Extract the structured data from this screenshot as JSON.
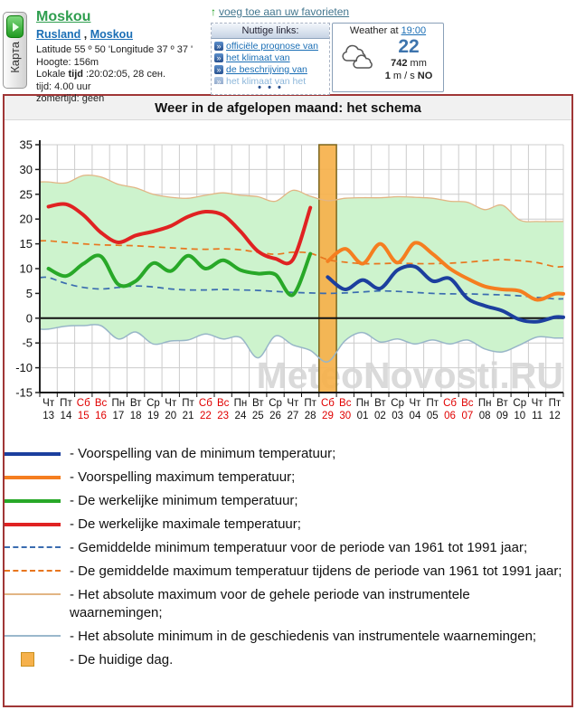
{
  "header": {
    "map_tab_label": "Карта",
    "city": {
      "name": "Moskou",
      "country": "Rusland",
      "sep": " , ",
      "region": "Moskou",
      "coords": "Latitude 55 º 50 'Longitude 37 º 37 '",
      "altitude": "Hoogte: 156m",
      "local_time_prefix": "Lokale ",
      "local_time_bold": "tijd",
      "local_time_rest": " :20:02:05, 28 сен.",
      "tz": "tijd: 4.00 uur",
      "dst": "zomertijd: geen"
    },
    "favorites": "voeg toe aan uw favorieten",
    "links": {
      "title": "Nuttige links:",
      "items": [
        "officiële prognose van",
        "het klimaat van",
        "de beschrijving van",
        "het klimaat van het"
      ],
      "more": "• • •"
    },
    "weather": {
      "label": "Weather at",
      "time": "19:00",
      "temp": "22",
      "pressure": "742",
      "pressure_unit": "mm",
      "wind_speed": "1",
      "wind_unit": "m / s",
      "wind_dir": "NO",
      "icon": "clouds-icon"
    }
  },
  "panel": {
    "title": "Weer in de afgelopen maand: het schema"
  },
  "chart_data": {
    "type": "line",
    "title": "Weer in de afgelopen maand: het schema",
    "watermark": "MeteoNovosti.RU",
    "ylim": [
      -15,
      35
    ],
    "y_ticks": [
      35,
      30,
      25,
      20,
      15,
      10,
      5,
      0,
      -5,
      -10,
      -15
    ],
    "grid": true,
    "legend_position": "bottom",
    "current_day_index": 16,
    "days": [
      {
        "dow": "Чт",
        "num": "13",
        "we": false
      },
      {
        "dow": "Пт",
        "num": "14",
        "we": false
      },
      {
        "dow": "Сб",
        "num": "15",
        "we": true
      },
      {
        "dow": "Вс",
        "num": "16",
        "we": true
      },
      {
        "dow": "Пн",
        "num": "17",
        "we": false
      },
      {
        "dow": "Вт",
        "num": "18",
        "we": false
      },
      {
        "dow": "Ср",
        "num": "19",
        "we": false
      },
      {
        "dow": "Чт",
        "num": "20",
        "we": false
      },
      {
        "dow": "Пт",
        "num": "21",
        "we": false
      },
      {
        "dow": "Сб",
        "num": "22",
        "we": true
      },
      {
        "dow": "Вс",
        "num": "23",
        "we": true
      },
      {
        "dow": "Пн",
        "num": "24",
        "we": false
      },
      {
        "dow": "Вт",
        "num": "25",
        "we": false
      },
      {
        "dow": "Ср",
        "num": "26",
        "we": false
      },
      {
        "dow": "Чт",
        "num": "27",
        "we": false
      },
      {
        "dow": "Пт",
        "num": "28",
        "we": false
      },
      {
        "dow": "Сб",
        "num": "29",
        "we": true
      },
      {
        "dow": "Вс",
        "num": "30",
        "we": true
      },
      {
        "dow": "Пн",
        "num": "01",
        "we": false
      },
      {
        "dow": "Вт",
        "num": "02",
        "we": false
      },
      {
        "dow": "Ср",
        "num": "03",
        "we": false
      },
      {
        "dow": "Чт",
        "num": "04",
        "we": false
      },
      {
        "dow": "Пт",
        "num": "05",
        "we": false
      },
      {
        "dow": "Сб",
        "num": "06",
        "we": true
      },
      {
        "dow": "Вс",
        "num": "07",
        "we": true
      },
      {
        "dow": "Пн",
        "num": "08",
        "we": false
      },
      {
        "dow": "Вт",
        "num": "09",
        "we": false
      },
      {
        "dow": "Ср",
        "num": "10",
        "we": false
      },
      {
        "dow": "Чт",
        "num": "11",
        "we": false
      },
      {
        "dow": "Пт",
        "num": "12",
        "we": false
      }
    ],
    "series": {
      "actual_max": {
        "label": "De werkelijke maximale temperatuur",
        "start": 0,
        "values": [
          22.5,
          23,
          20.8,
          17.3,
          15.3,
          16.7,
          17.5,
          18.6,
          20.5,
          21.5,
          20.8,
          17.5,
          13.5,
          12,
          11.8,
          22.3
        ]
      },
      "actual_min": {
        "label": "De werkelijke minimum temperatuur",
        "start": 0,
        "values": [
          10,
          8.5,
          11,
          12.5,
          6.8,
          7.5,
          11.1,
          9.5,
          12.6,
          10,
          11.7,
          9.7,
          9,
          8.8,
          4.7,
          13
        ]
      },
      "forecast_max": {
        "label": "Voorspelling maximum temperatuur",
        "start": 16,
        "values": [
          11.5,
          14,
          11,
          15,
          11.2,
          15.2,
          13,
          10,
          8,
          6.4,
          5.8,
          5.5,
          3.7,
          4.9
        ]
      },
      "forecast_min": {
        "label": "Voorspelling van de minimum temperatuur",
        "start": 16,
        "values": [
          8.3,
          5.8,
          7.7,
          6,
          9.7,
          10.4,
          7.5,
          8,
          4,
          2.5,
          1.5,
          -0.3,
          -0.7,
          0.2
        ]
      },
      "avg_max": {
        "label": "Gemiddelde maximum temperatuur 1961-1991",
        "start": 0,
        "values": [
          15.6,
          15.3,
          15,
          14.8,
          14.7,
          14.6,
          14.4,
          14.2,
          14,
          13.9,
          14,
          13.8,
          13.3,
          12.9,
          13.3,
          13.1,
          11.8,
          11.3,
          11,
          11,
          11.1,
          11,
          11,
          11.1,
          11.3,
          11.6,
          11.8,
          11.6,
          11.2,
          10.4
        ]
      },
      "avg_min": {
        "label": "Gemiddelde minimum temperatuur 1961-1991",
        "start": 0,
        "values": [
          8.2,
          7,
          6.2,
          5.9,
          6.2,
          6.5,
          6.3,
          5.9,
          5.7,
          5.7,
          5.8,
          5.7,
          5.6,
          5.4,
          5.2,
          5.1,
          5,
          5.1,
          5.3,
          5.5,
          5.4,
          5.2,
          5,
          4.9,
          4.9,
          4.8,
          4.7,
          4.5,
          4.2,
          3.9
        ]
      },
      "abs_max": {
        "label": "Absolute maximum",
        "start": 0,
        "values": [
          27.5,
          27.3,
          28.8,
          28.5,
          27,
          26.3,
          25,
          24.4,
          24.2,
          24.8,
          25.3,
          24.8,
          24.5,
          23.6,
          25.8,
          24.6,
          23.7,
          24.2,
          24.3,
          24.3,
          24.5,
          24.4,
          24.2,
          23.6,
          23.4,
          21.9,
          22.8,
          19.8,
          19.5,
          19.5
        ]
      },
      "abs_min": {
        "label": "Absolute minimum",
        "start": 0,
        "values": [
          -2.2,
          -1.6,
          -1.5,
          -1.5,
          -4.2,
          -2.8,
          -5.2,
          -4.6,
          -4.4,
          -3.2,
          -4.2,
          -3.9,
          -8,
          -3.6,
          -5.4,
          -6.5,
          -8.8,
          -4.5,
          -2.9,
          -4.8,
          -4.2,
          -5.2,
          -4.4,
          -5.2,
          -4.4,
          -6.2,
          -6.8,
          -5.4,
          -3.8,
          -4
        ]
      }
    },
    "colors": {
      "actual_max": "#e02222",
      "actual_min": "#28a828",
      "forecast_min": "#1c3f9e",
      "forecast_max": "#f57e20",
      "avg_min": "#3a6cb0",
      "avg_max": "#e8761e",
      "abs_max": "#e2b584",
      "abs_min": "#98b6c8",
      "band_fill": "#cdf3cd",
      "today_fill": "#f6b14b",
      "today_border": "#7c661e",
      "grid": "#cccccc",
      "axis": "#222222",
      "weekend": "#e00000",
      "watermark": "#d7d7d7"
    }
  },
  "legend": [
    {
      "style": "solid-navy",
      "label": "- Voorspelling van de minimum temperatuur;"
    },
    {
      "style": "solid-orange",
      "label": "- Voorspelling maximum temperatuur;"
    },
    {
      "style": "solid-green",
      "label": "- De werkelijke minimum temperatuur;"
    },
    {
      "style": "solid-red",
      "label": "- De werkelijke maximale temperatuur;"
    },
    {
      "style": "dashed-blue",
      "label": "- Gemiddelde minimum temperatuur voor de periode van 1961 tot 1991 jaar;"
    },
    {
      "style": "dashed-orange",
      "label": "- De gemiddelde maximum temperatuur tijdens de periode van 1961 tot 1991 jaar;"
    },
    {
      "style": "thin-tan",
      "label": "- Het absolute maximum voor de gehele periode van instrumentele waarnemingen;"
    },
    {
      "style": "thin-lightblue",
      "label": "- Het absolute minimum in de geschiedenis van instrumentele waarnemingen;"
    },
    {
      "style": "orange-square",
      "label": "- De huidige dag."
    }
  ]
}
